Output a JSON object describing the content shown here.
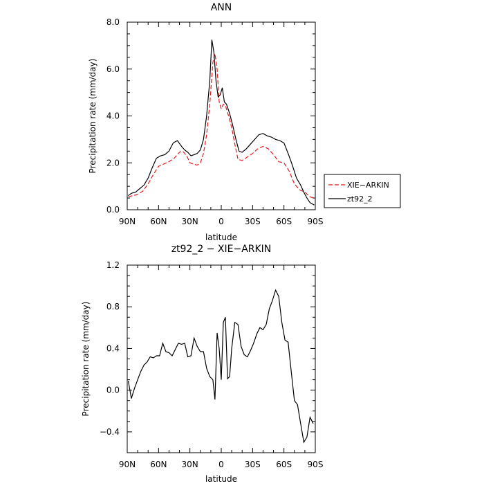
{
  "chart_data": [
    {
      "type": "line",
      "title": "ANN",
      "xlabel": "latitude",
      "ylabel": "Precipitation rate (mm/day)",
      "xlim": [
        90,
        -90
      ],
      "ylim": [
        0,
        8
      ],
      "x_ticks": [
        90,
        60,
        30,
        0,
        -30,
        -60,
        -90
      ],
      "x_tick_labels": [
        "90N",
        "60N",
        "30N",
        "0",
        "30S",
        "60S",
        "90S"
      ],
      "y_ticks": [
        0,
        2,
        4,
        6,
        8
      ],
      "y_tick_labels": [
        "0.0",
        "2.0",
        "4.0",
        "6.0",
        "8.0"
      ],
      "legend_position": "right",
      "series": [
        {
          "name": "XIE−ARKIN",
          "color": "#e41a1c",
          "dash": "dashed",
          "points": [
            [
              89,
              0.55
            ],
            [
              85,
              0.6
            ],
            [
              80,
              0.65
            ],
            [
              75,
              0.8
            ],
            [
              70,
              1.1
            ],
            [
              65,
              1.5
            ],
            [
              60,
              1.85
            ],
            [
              55,
              1.95
            ],
            [
              50,
              2.05
            ],
            [
              45,
              2.2
            ],
            [
              40,
              2.45
            ],
            [
              37,
              2.5
            ],
            [
              33,
              2.3
            ],
            [
              30,
              2.0
            ],
            [
              27,
              1.95
            ],
            [
              23,
              1.9
            ],
            [
              20,
              2.0
            ],
            [
              17,
              2.4
            ],
            [
              14,
              3.2
            ],
            [
              11,
              4.5
            ],
            [
              8,
              6.3
            ],
            [
              6,
              6.65
            ],
            [
              4,
              6.0
            ],
            [
              2,
              4.6
            ],
            [
              0,
              4.3
            ],
            [
              -2,
              4.5
            ],
            [
              -4,
              4.45
            ],
            [
              -7,
              4.0
            ],
            [
              -10,
              3.5
            ],
            [
              -13,
              2.8
            ],
            [
              -16,
              2.15
            ],
            [
              -20,
              2.1
            ],
            [
              -25,
              2.25
            ],
            [
              -30,
              2.4
            ],
            [
              -35,
              2.6
            ],
            [
              -40,
              2.7
            ],
            [
              -45,
              2.6
            ],
            [
              -50,
              2.35
            ],
            [
              -55,
              2.05
            ],
            [
              -60,
              2.0
            ],
            [
              -65,
              1.65
            ],
            [
              -70,
              1.1
            ],
            [
              -75,
              0.85
            ],
            [
              -80,
              0.75
            ],
            [
              -85,
              0.55
            ],
            [
              -89,
              0.5
            ]
          ]
        },
        {
          "name": "zt92_2",
          "color": "#000000",
          "dash": "solid",
          "points": [
            [
              89,
              0.6
            ],
            [
              86,
              0.7
            ],
            [
              82,
              0.75
            ],
            [
              78,
              0.9
            ],
            [
              74,
              1.05
            ],
            [
              70,
              1.35
            ],
            [
              66,
              1.8
            ],
            [
              62,
              2.2
            ],
            [
              58,
              2.3
            ],
            [
              54,
              2.35
            ],
            [
              50,
              2.5
            ],
            [
              46,
              2.85
            ],
            [
              42,
              2.95
            ],
            [
              38,
              2.7
            ],
            [
              35,
              2.55
            ],
            [
              32,
              2.45
            ],
            [
              29,
              2.3
            ],
            [
              26,
              2.35
            ],
            [
              23,
              2.4
            ],
            [
              20,
              2.55
            ],
            [
              17,
              3.0
            ],
            [
              14,
              4.0
            ],
            [
              11,
              5.5
            ],
            [
              9,
              7.25
            ],
            [
              7,
              6.7
            ],
            [
              5,
              5.5
            ],
            [
              3,
              4.8
            ],
            [
              1,
              4.9
            ],
            [
              -1,
              5.2
            ],
            [
              -3,
              4.6
            ],
            [
              -5,
              4.5
            ],
            [
              -8,
              4.1
            ],
            [
              -11,
              3.6
            ],
            [
              -14,
              3.0
            ],
            [
              -17,
              2.5
            ],
            [
              -20,
              2.45
            ],
            [
              -24,
              2.6
            ],
            [
              -28,
              2.8
            ],
            [
              -32,
              3.0
            ],
            [
              -36,
              3.2
            ],
            [
              -40,
              3.25
            ],
            [
              -44,
              3.15
            ],
            [
              -48,
              3.1
            ],
            [
              -52,
              3.0
            ],
            [
              -56,
              2.95
            ],
            [
              -60,
              2.85
            ],
            [
              -64,
              2.4
            ],
            [
              -68,
              1.9
            ],
            [
              -72,
              1.35
            ],
            [
              -76,
              1.05
            ],
            [
              -79,
              0.75
            ],
            [
              -82,
              0.5
            ],
            [
              -85,
              0.3
            ],
            [
              -87,
              0.25
            ],
            [
              -89,
              0.2
            ]
          ]
        }
      ]
    },
    {
      "type": "line",
      "title": "zt92_2 − XIE−ARKIN",
      "xlabel": "latitude",
      "ylabel": "Precipitation rate (mm/day)",
      "xlim": [
        90,
        -90
      ],
      "ylim": [
        -0.6,
        1.2
      ],
      "x_ticks": [
        90,
        60,
        30,
        0,
        -30,
        -60,
        -90
      ],
      "x_tick_labels": [
        "90N",
        "60N",
        "30N",
        "0",
        "30S",
        "60S",
        "90S"
      ],
      "y_ticks": [
        -0.4,
        0,
        0.4,
        0.8,
        1.2
      ],
      "y_tick_labels": [
        "−0.4",
        "0.0",
        "0.4",
        "0.8",
        "1.2"
      ],
      "series": [
        {
          "name": "",
          "color": "#000000",
          "dash": "solid",
          "points": [
            [
              89,
              0.09
            ],
            [
              86,
              -0.08
            ],
            [
              83,
              0.02
            ],
            [
              80,
              0.1
            ],
            [
              77,
              0.18
            ],
            [
              74,
              0.24
            ],
            [
              71,
              0.27
            ],
            [
              68,
              0.32
            ],
            [
              65,
              0.31
            ],
            [
              62,
              0.33
            ],
            [
              59,
              0.33
            ],
            [
              56,
              0.45
            ],
            [
              53,
              0.37
            ],
            [
              50,
              0.36
            ],
            [
              47,
              0.33
            ],
            [
              44,
              0.39
            ],
            [
              41,
              0.45
            ],
            [
              38,
              0.44
            ],
            [
              35,
              0.45
            ],
            [
              32,
              0.32
            ],
            [
              29,
              0.33
            ],
            [
              26,
              0.5
            ],
            [
              23,
              0.42
            ],
            [
              20,
              0.37
            ],
            [
              17,
              0.37
            ],
            [
              14,
              0.21
            ],
            [
              11,
              0.13
            ],
            [
              8,
              0.1
            ],
            [
              6,
              -0.09
            ],
            [
              4,
              0.55
            ],
            [
              2,
              0.4
            ],
            [
              0,
              0.1
            ],
            [
              -2,
              0.65
            ],
            [
              -4,
              0.7
            ],
            [
              -6,
              0.11
            ],
            [
              -8,
              0.13
            ],
            [
              -10,
              0.4
            ],
            [
              -13,
              0.65
            ],
            [
              -16,
              0.63
            ],
            [
              -19,
              0.42
            ],
            [
              -22,
              0.34
            ],
            [
              -25,
              0.32
            ],
            [
              -28,
              0.38
            ],
            [
              -31,
              0.45
            ],
            [
              -34,
              0.54
            ],
            [
              -37,
              0.6
            ],
            [
              -40,
              0.58
            ],
            [
              -43,
              0.63
            ],
            [
              -46,
              0.78
            ],
            [
              -49,
              0.86
            ],
            [
              -52,
              0.96
            ],
            [
              -55,
              0.9
            ],
            [
              -58,
              0.65
            ],
            [
              -61,
              0.48
            ],
            [
              -64,
              0.46
            ],
            [
              -67,
              0.18
            ],
            [
              -70,
              -0.1
            ],
            [
              -73,
              -0.14
            ],
            [
              -76,
              -0.32
            ],
            [
              -79,
              -0.5
            ],
            [
              -82,
              -0.45
            ],
            [
              -85,
              -0.26
            ],
            [
              -88,
              -0.32
            ]
          ]
        }
      ]
    }
  ]
}
